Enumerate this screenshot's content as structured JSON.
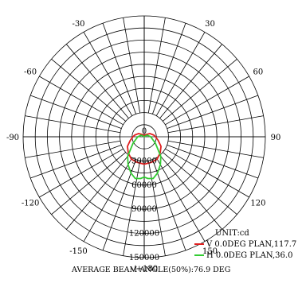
{
  "chart_data": {
    "type": "polar",
    "angle_labels": [
      {
        "angle": 180,
        "text": "-/+180"
      },
      {
        "angle": 150,
        "text": "150"
      },
      {
        "angle": -150,
        "text": "-150"
      },
      {
        "angle": 120,
        "text": "120"
      },
      {
        "angle": -120,
        "text": "-120"
      },
      {
        "angle": 90,
        "text": "90"
      },
      {
        "angle": -90,
        "text": "-90"
      },
      {
        "angle": 60,
        "text": "60"
      },
      {
        "angle": -60,
        "text": "-60"
      },
      {
        "angle": 30,
        "text": "30"
      },
      {
        "angle": -30,
        "text": "-30"
      }
    ],
    "radial_labels": [
      "0",
      "30000",
      "60000",
      "90000",
      "120000",
      "150000"
    ],
    "radial_values": [
      0,
      30000,
      60000,
      90000,
      120000,
      150000
    ],
    "rmax": 150000,
    "unit_label": "UNIT:cd",
    "legend": [
      {
        "text": "V 0.0DEG PLAN,117.7",
        "color": "#e02020"
      },
      {
        "text": "H 0.0DEG PLAN,36.0",
        "color": "#33cc33"
      }
    ],
    "series": [
      {
        "color": "#e02020",
        "points": [
          [
            -180,
            0
          ],
          [
            -150,
            3000
          ],
          [
            -120,
            8000
          ],
          [
            -100,
            12000
          ],
          [
            -90,
            14000
          ],
          [
            -75,
            18000
          ],
          [
            -60,
            24000
          ],
          [
            -45,
            28000
          ],
          [
            -30,
            32000
          ],
          [
            -15,
            33000
          ],
          [
            0,
            34000
          ],
          [
            15,
            33000
          ],
          [
            30,
            32000
          ],
          [
            45,
            28000
          ],
          [
            60,
            24000
          ],
          [
            75,
            18000
          ],
          [
            90,
            14000
          ],
          [
            100,
            12000
          ],
          [
            120,
            8000
          ],
          [
            150,
            3000
          ],
          [
            180,
            0
          ]
        ]
      },
      {
        "color": "#33cc33",
        "points": [
          [
            -180,
            0
          ],
          [
            -120,
            4000
          ],
          [
            -90,
            8000
          ],
          [
            -60,
            16000
          ],
          [
            -40,
            32000
          ],
          [
            -30,
            40000
          ],
          [
            -20,
            48000
          ],
          [
            -12,
            53000
          ],
          [
            -5,
            52000
          ],
          [
            0,
            50000
          ],
          [
            5,
            52000
          ],
          [
            12,
            53000
          ],
          [
            20,
            48000
          ],
          [
            30,
            40000
          ],
          [
            40,
            32000
          ],
          [
            60,
            16000
          ],
          [
            90,
            8000
          ],
          [
            120,
            4000
          ],
          [
            180,
            0
          ]
        ]
      }
    ]
  },
  "footer": {
    "average_beam_angle": "AVERAGE BEAM ANGLE(50%):76.9 DEG"
  }
}
